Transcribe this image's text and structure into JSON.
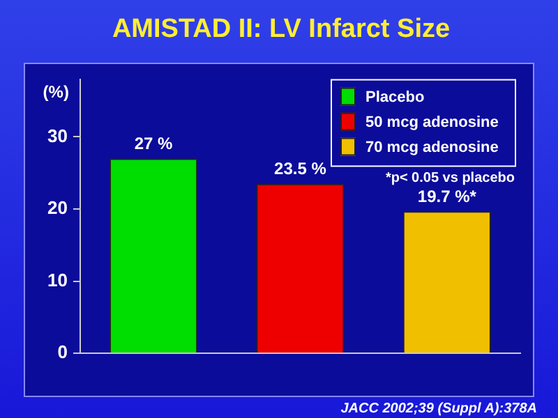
{
  "chart_data": {
    "type": "bar",
    "title": "AMISTAD II: LV Infarct Size",
    "ylabel": "(%)",
    "categories": [
      null,
      null,
      null
    ],
    "series": [
      {
        "name": "Placebo",
        "color": "#00dd00",
        "values": [
          27,
          null,
          null
        ],
        "value_labels": [
          "27 %",
          null,
          null
        ]
      },
      {
        "name": "50 mcg adenosine",
        "color": "#ee0000",
        "values": [
          null,
          23.5,
          null
        ],
        "value_labels": [
          null,
          "23.5 %",
          null
        ]
      },
      {
        "name": "70 mcg adenosine",
        "color": "#f0c000",
        "values": [
          null,
          null,
          19.7
        ],
        "value_labels": [
          null,
          null,
          "19.7 %*"
        ]
      }
    ],
    "ylim": [
      0,
      38
    ],
    "yticks": [
      0,
      10,
      20,
      30
    ],
    "grid": false,
    "legend": "top right",
    "annotations": [
      "*p< 0.05 vs placebo",
      "JACC 2002;39 (Suppl A):378A"
    ]
  }
}
